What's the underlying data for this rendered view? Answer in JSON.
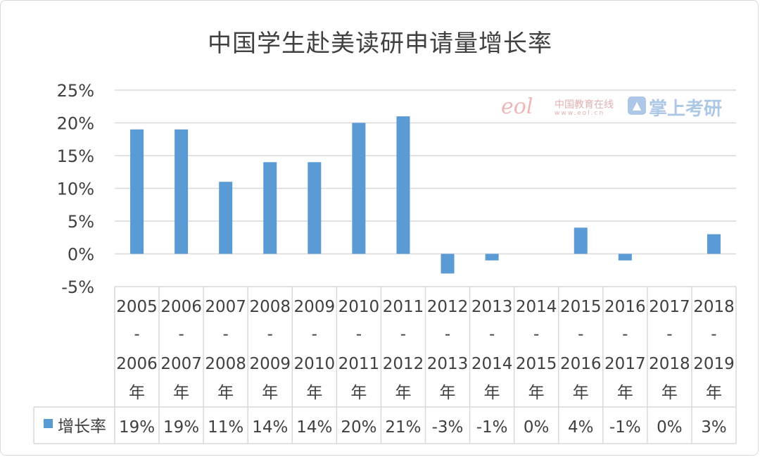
{
  "chart_data": {
    "type": "bar",
    "title": "中国学生赴美读研申请量增长率",
    "categories": [
      [
        "2005",
        "-",
        "2006",
        "年"
      ],
      [
        "2006",
        "-",
        "2007",
        "年"
      ],
      [
        "2007",
        "-",
        "2008",
        "年"
      ],
      [
        "2008",
        "-",
        "2009",
        "年"
      ],
      [
        "2009",
        "-",
        "2010",
        "年"
      ],
      [
        "2010",
        "-",
        "2011",
        "年"
      ],
      [
        "2011",
        "-",
        "2012",
        "年"
      ],
      [
        "2012",
        "-",
        "2013",
        "年"
      ],
      [
        "2013",
        "-",
        "2014",
        "年"
      ],
      [
        "2014",
        "-",
        "2015",
        "年"
      ],
      [
        "2015",
        "-",
        "2016",
        "年"
      ],
      [
        "2016",
        "-",
        "2017",
        "年"
      ],
      [
        "2017",
        "-",
        "2018",
        "年"
      ],
      [
        "2018",
        "-",
        "2019",
        "年"
      ]
    ],
    "series": [
      {
        "name": "增长率",
        "values": [
          19,
          19,
          11,
          14,
          14,
          20,
          21,
          -3,
          -1,
          0,
          4,
          -1,
          0,
          3
        ],
        "labels": [
          "19%",
          "19%",
          "11%",
          "14%",
          "14%",
          "20%",
          "21%",
          "-3%",
          "-1%",
          "0%",
          "4%",
          "-1%",
          "0%",
          "3%"
        ]
      }
    ],
    "y_ticks": [
      "25%",
      "20%",
      "15%",
      "10%",
      "5%",
      "0%",
      "-5%"
    ],
    "ylim": [
      -5,
      25
    ],
    "grid": true,
    "data_table": true,
    "colors": {
      "bar": "#5b9bd5",
      "grid": "#d9d9d9",
      "text": "#404040"
    }
  },
  "watermark": {
    "logo_text": "eol",
    "site_name": "中国教育在线",
    "url": "www.eol.cn",
    "icon": "graduation-cap-icon",
    "brand": "掌上考研"
  }
}
